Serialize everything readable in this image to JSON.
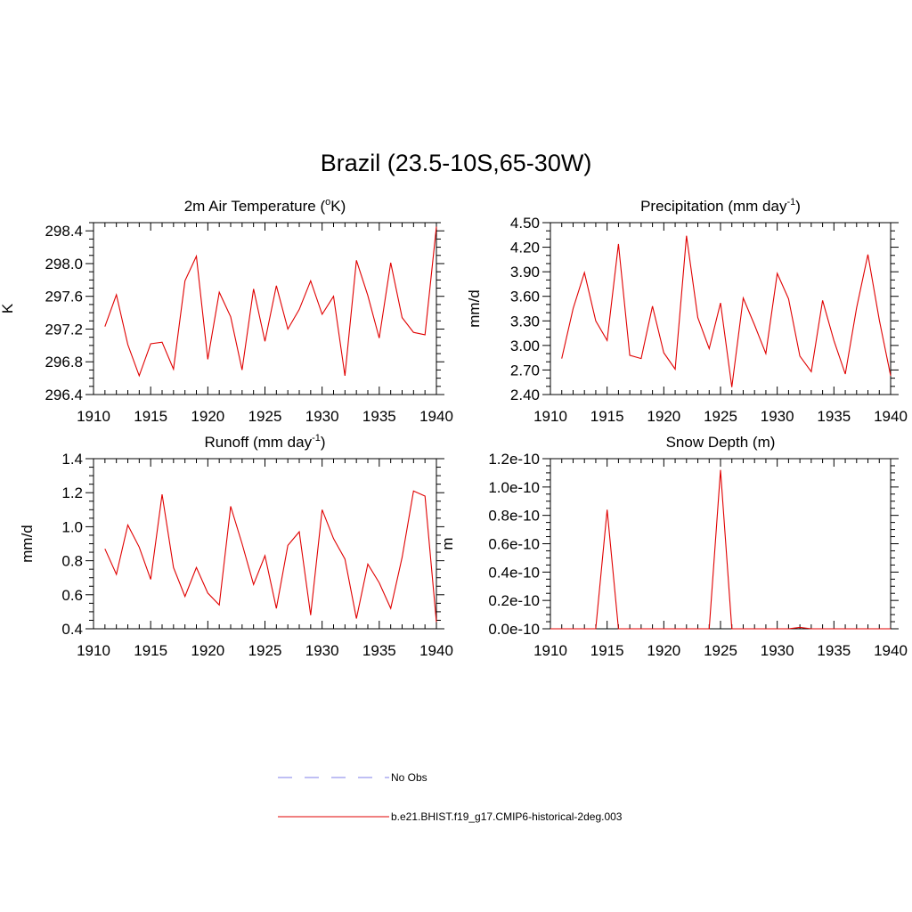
{
  "title": "Brazil (23.5-10S,65-30W)",
  "colors": {
    "model_line": "#e00000",
    "obs_line": "#9999ee",
    "axis": "#000000"
  },
  "legend": [
    {
      "label": "No Obs",
      "style": "dashed",
      "color": "#9999ee"
    },
    {
      "label": "b.e21.BHIST.f19_g17.CMIP6-historical-2deg.003",
      "style": "solid",
      "color": "#e00000"
    }
  ],
  "chart_data": [
    {
      "type": "line",
      "title": "2m Air Temperature (",
      "title_sup": "o",
      "title_after": "K)",
      "ylabel": "K",
      "xlim": [
        1910,
        1940
      ],
      "ylim": [
        296.4,
        298.5
      ],
      "xticks": [
        1910,
        1915,
        1920,
        1925,
        1930,
        1935,
        1940
      ],
      "yticks": [
        "296.4",
        "296.8",
        "297.2",
        "297.6",
        "298.0",
        "298.4"
      ],
      "ytick_values": [
        296.4,
        296.8,
        297.2,
        297.6,
        298.0,
        298.4
      ],
      "x_minor_step": 1,
      "y_minor_step": 0.1,
      "series": [
        {
          "color": "#e00000",
          "x": [
            1911,
            1912,
            1913,
            1914,
            1915,
            1916,
            1917,
            1918,
            1919,
            1920,
            1921,
            1922,
            1923,
            1924,
            1925,
            1926,
            1927,
            1928,
            1929,
            1930,
            1931,
            1932,
            1933,
            1934,
            1935,
            1936,
            1937,
            1938,
            1939,
            1940
          ],
          "values": [
            297.23,
            297.62,
            297.01,
            296.63,
            297.02,
            297.04,
            296.71,
            297.79,
            298.09,
            296.83,
            297.65,
            297.35,
            296.7,
            297.69,
            297.05,
            297.73,
            297.2,
            297.44,
            297.79,
            297.38,
            297.6,
            296.63,
            298.04,
            297.61,
            297.09,
            298.01,
            297.34,
            297.16,
            297.13,
            298.45
          ]
        }
      ]
    },
    {
      "type": "line",
      "title": "Precipitation (mm day",
      "title_sup": "-1",
      "title_after": ")",
      "ylabel": "mm/d",
      "xlim": [
        1910,
        1940
      ],
      "ylim": [
        2.4,
        4.5
      ],
      "xticks": [
        1910,
        1915,
        1920,
        1925,
        1930,
        1935,
        1940
      ],
      "yticks": [
        "2.40",
        "2.70",
        "3.00",
        "3.30",
        "3.60",
        "3.90",
        "4.20",
        "4.50"
      ],
      "ytick_values": [
        2.4,
        2.7,
        3.0,
        3.3,
        3.6,
        3.9,
        4.2,
        4.5
      ],
      "x_minor_step": 1,
      "y_minor_step": 0.1,
      "series": [
        {
          "color": "#e00000",
          "x": [
            1911,
            1912,
            1913,
            1914,
            1915,
            1916,
            1917,
            1918,
            1919,
            1920,
            1921,
            1922,
            1923,
            1924,
            1925,
            1926,
            1927,
            1928,
            1929,
            1930,
            1931,
            1932,
            1933,
            1934,
            1935,
            1936,
            1937,
            1938,
            1939,
            1940
          ],
          "values": [
            2.84,
            3.45,
            3.89,
            3.3,
            3.06,
            4.24,
            2.88,
            2.84,
            3.48,
            2.91,
            2.71,
            4.34,
            3.34,
            2.96,
            3.52,
            2.49,
            3.58,
            3.25,
            2.9,
            3.88,
            3.57,
            2.87,
            2.68,
            3.55,
            3.06,
            2.65,
            3.46,
            4.11,
            3.31,
            2.63
          ]
        }
      ]
    },
    {
      "type": "line",
      "title": "Runoff (mm day",
      "title_sup": "-1",
      "title_after": ")",
      "ylabel": "mm/d",
      "xlim": [
        1910,
        1940
      ],
      "ylim": [
        0.4,
        1.4
      ],
      "xticks": [
        1910,
        1915,
        1920,
        1925,
        1930,
        1935,
        1940
      ],
      "yticks": [
        "0.4",
        "0.6",
        "0.8",
        "1.0",
        "1.2",
        "1.4"
      ],
      "ytick_values": [
        0.4,
        0.6,
        0.8,
        1.0,
        1.2,
        1.4
      ],
      "x_minor_step": 1,
      "y_minor_step": 0.05,
      "series": [
        {
          "color": "#e00000",
          "x": [
            1911,
            1912,
            1913,
            1914,
            1915,
            1916,
            1917,
            1918,
            1919,
            1920,
            1921,
            1922,
            1923,
            1924,
            1925,
            1926,
            1927,
            1928,
            1929,
            1930,
            1931,
            1932,
            1933,
            1934,
            1935,
            1936,
            1937,
            1938,
            1939,
            1940
          ],
          "values": [
            0.87,
            0.72,
            1.01,
            0.88,
            0.69,
            1.19,
            0.76,
            0.59,
            0.76,
            0.61,
            0.54,
            1.12,
            0.9,
            0.66,
            0.83,
            0.52,
            0.89,
            0.97,
            0.48,
            1.1,
            0.93,
            0.81,
            0.46,
            0.78,
            0.67,
            0.52,
            0.82,
            1.21,
            1.18,
            0.44
          ]
        }
      ]
    },
    {
      "type": "line",
      "title": "Snow Depth (m)",
      "title_sup": "",
      "title_after": "",
      "ylabel": "m",
      "xlim": [
        1910,
        1940
      ],
      "ylim": [
        0.0,
        1.2e-10
      ],
      "xticks": [
        1910,
        1915,
        1920,
        1925,
        1930,
        1935,
        1940
      ],
      "yticks": [
        "0.0e-10",
        "0.2e-10",
        "0.4e-10",
        "0.6e-10",
        "0.8e-10",
        "1.0e-10",
        "1.2e-10"
      ],
      "ytick_values": [
        0,
        2e-11,
        4e-11,
        6e-11,
        8e-11,
        1e-10,
        1.2e-10
      ],
      "x_minor_step": 1,
      "y_minor_step": 5e-12,
      "series": [
        {
          "color": "#e00000",
          "x": [
            1910,
            1911,
            1912,
            1913,
            1914,
            1915,
            1916,
            1917,
            1918,
            1919,
            1920,
            1921,
            1922,
            1923,
            1924,
            1925,
            1926,
            1927,
            1928,
            1929,
            1930,
            1931,
            1932,
            1933,
            1934,
            1935,
            1936,
            1937,
            1938,
            1939,
            1940
          ],
          "values": [
            0,
            0,
            0,
            0,
            0,
            8.4e-11,
            0,
            0,
            0,
            0,
            0,
            0,
            0,
            0,
            0,
            1.12e-10,
            0,
            0,
            0,
            0,
            0,
            0,
            1e-12,
            0,
            0,
            0,
            0,
            0,
            0,
            0,
            0
          ]
        }
      ]
    }
  ]
}
